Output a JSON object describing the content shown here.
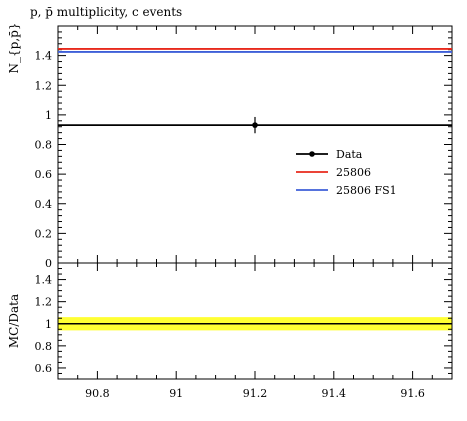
{
  "chart_data": {
    "title": "p, p̄ multiplicity, c events",
    "main": {
      "type": "line",
      "ylabel": "N_{p,p̄}",
      "xlim": [
        90.7,
        91.7
      ],
      "ylim": [
        0,
        1.6
      ],
      "yticks": [
        0,
        0.2,
        0.4,
        0.6,
        0.8,
        1,
        1.2,
        1.4
      ],
      "ytick_labels": [
        "0",
        "0.2",
        "0.4",
        "0.6",
        "0.8",
        "1",
        "1.2",
        "1.4"
      ],
      "series": [
        {
          "name": "Data",
          "color": "#000000",
          "x": [
            91.2
          ],
          "y": [
            0.931
          ],
          "yerr": [
            0.055
          ],
          "xrange": [
            90.7,
            91.7
          ]
        },
        {
          "name": "25806",
          "color": "#e8291c",
          "y": 1.445
        },
        {
          "name": "25806 FS1",
          "color": "#3e5fd8",
          "y": 1.425
        }
      ],
      "legend_position": "center-right"
    },
    "ratio": {
      "type": "line",
      "ylabel": "MC/Data",
      "xlim": [
        90.7,
        91.7
      ],
      "ylim": [
        0.5,
        1.55
      ],
      "yticks": [
        0.6,
        0.8,
        1,
        1.2,
        1.4
      ],
      "ytick_labels": [
        "0.6",
        "0.8",
        "1",
        "1.2",
        "1.4"
      ],
      "band": {
        "low": 0.94,
        "high": 1.06,
        "color": "#ffff33"
      },
      "reference": 1,
      "xticks": [
        90.8,
        91,
        91.2,
        91.4,
        91.6
      ],
      "xtick_labels": [
        "90.8",
        "91",
        "91.2",
        "91.4",
        "91.6"
      ]
    }
  }
}
